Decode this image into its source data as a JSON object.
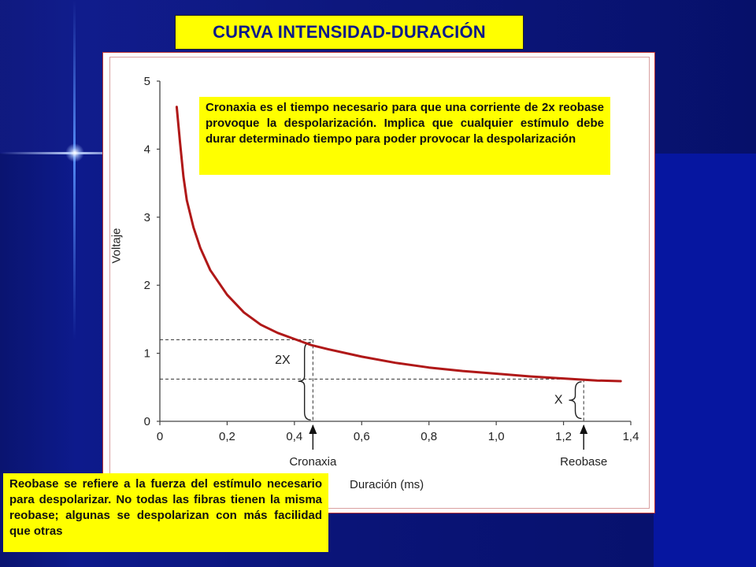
{
  "title": "CURVA INTENSIDAD-DURACIÓN",
  "notes": {
    "top": "Cronaxia es el tiempo necesario para que una corriente de 2x reobase provoque la despolarización. Implica que cualquier estímulo debe durar determinado tiempo para poder provocar la despolarización",
    "bottom": "Reobase se refiere a la fuerza del estímulo necesario para despolarizar. No todas las fibras tienen la misma reobase; algunas se despolarizan con más facilidad que otras"
  },
  "chart_data": {
    "type": "line",
    "xlabel": "Duración (ms)",
    "ylabel": "Voltaje",
    "xlim": [
      0,
      1.4
    ],
    "ylim": [
      0,
      5
    ],
    "xticks": [
      "0",
      "0,2",
      "0,4",
      "0,6",
      "0,8",
      "1,0",
      "1,2",
      "1,4"
    ],
    "yticks": [
      "0",
      "1",
      "2",
      "3",
      "4",
      "5"
    ],
    "series": [
      {
        "color": "#b01818",
        "x": [
          0.05,
          0.06,
          0.07,
          0.08,
          0.1,
          0.12,
          0.15,
          0.2,
          0.25,
          0.3,
          0.35,
          0.4,
          0.45,
          0.5,
          0.6,
          0.7,
          0.8,
          0.9,
          1.0,
          1.1,
          1.2,
          1.3,
          1.37
        ],
        "y": [
          4.62,
          4.1,
          3.6,
          3.25,
          2.85,
          2.55,
          2.22,
          1.86,
          1.6,
          1.42,
          1.3,
          1.21,
          1.12,
          1.06,
          0.95,
          0.86,
          0.79,
          0.74,
          0.7,
          0.66,
          0.63,
          0.6,
          0.59
        ]
      }
    ],
    "reference_lines": [
      {
        "label": "2X",
        "y": 1.2,
        "x": 0.455
      },
      {
        "label": "X",
        "y": 0.62,
        "x": 1.26
      }
    ],
    "annotations": [
      {
        "label": "Cronaxia",
        "x": 0.455
      },
      {
        "label": "Reobase",
        "x": 1.26
      }
    ],
    "grid": false
  }
}
